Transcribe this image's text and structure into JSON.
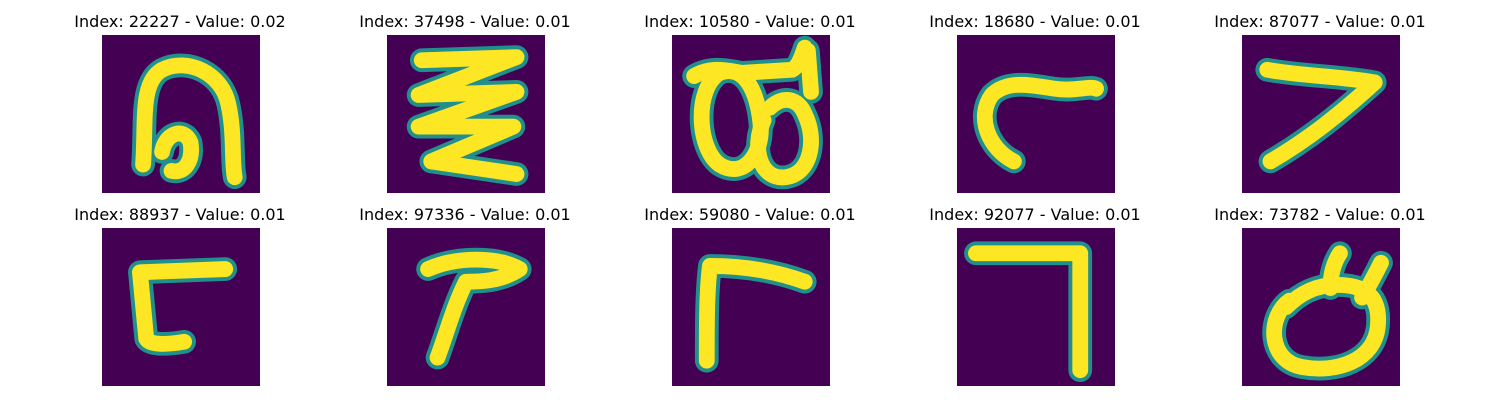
{
  "chart_data": {
    "type": "image-grid",
    "title": "",
    "layout": {
      "rows": 2,
      "cols": 5
    },
    "colormap": {
      "low": "#440154",
      "mid": "#21908d",
      "high": "#fde725"
    },
    "panels": [
      {
        "index": 22227,
        "value": 0.02,
        "label": "Index: 22227 - Value: 0.02",
        "glyph": "hump"
      },
      {
        "index": 37498,
        "value": 0.01,
        "label": "Index: 37498 - Value: 0.01",
        "glyph": "zigzag"
      },
      {
        "index": 10580,
        "value": 0.01,
        "label": "Index: 10580 - Value: 0.01",
        "glyph": "double-loop"
      },
      {
        "index": 18680,
        "value": 0.01,
        "label": "Index: 18680 - Value: 0.01",
        "glyph": "hook"
      },
      {
        "index": 87077,
        "value": 0.01,
        "label": "Index: 87077 - Value: 0.01",
        "glyph": "seven"
      },
      {
        "index": 88937,
        "value": 0.01,
        "label": "Index: 88937 - Value: 0.01",
        "glyph": "c-shape"
      },
      {
        "index": 97336,
        "value": 0.01,
        "label": "Index: 97336 - Value: 0.01",
        "glyph": "gamma"
      },
      {
        "index": 59080,
        "value": 0.01,
        "label": "Index: 59080 - Value: 0.01",
        "glyph": "angle-left"
      },
      {
        "index": 92077,
        "value": 0.01,
        "label": "Index: 92077 - Value: 0.01",
        "glyph": "angle-right"
      },
      {
        "index": 73782,
        "value": 0.01,
        "label": "Index: 73782 - Value: 0.01",
        "glyph": "loop"
      }
    ]
  }
}
